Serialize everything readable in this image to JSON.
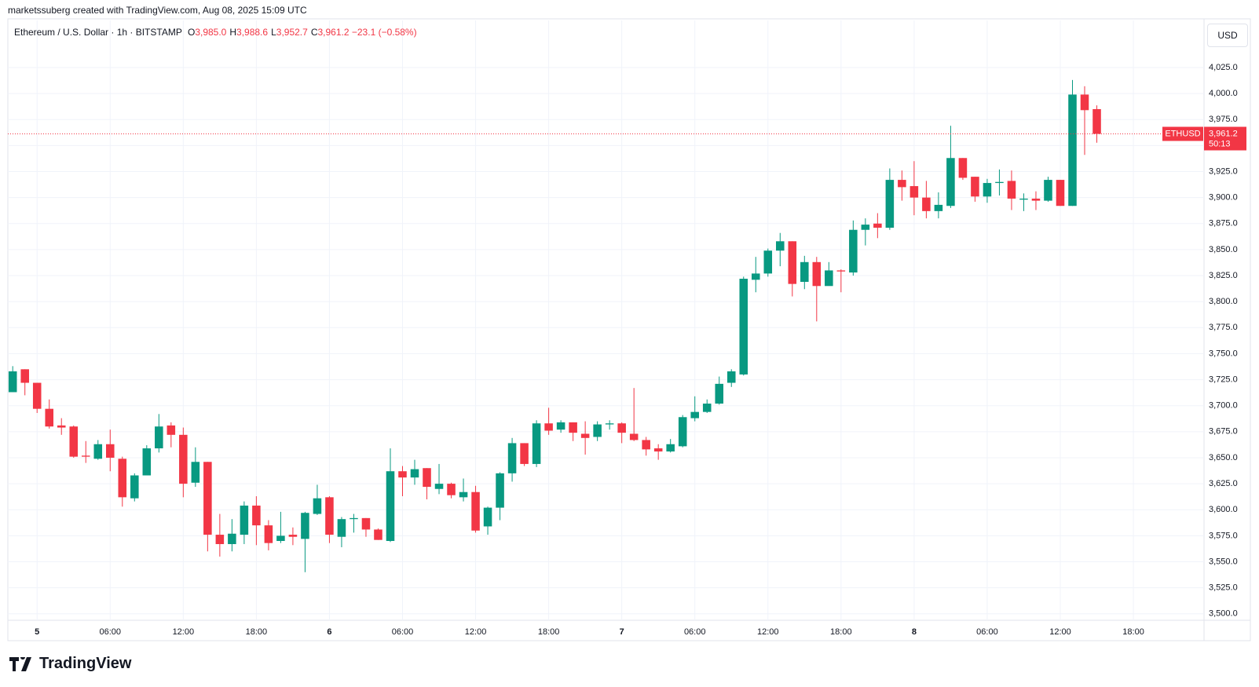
{
  "header": {
    "attribution": "marketssuberg created with TradingView.com, Aug 08, 2025 15:09 UTC",
    "symbol": "Ethereum / U.S. Dollar · 1h · BITSTAMP",
    "legend": [
      {
        "key": "O",
        "value": "3,985.0"
      },
      {
        "key": "H",
        "value": "3,988.6"
      },
      {
        "key": "L",
        "value": "3,952.7"
      },
      {
        "key": "C",
        "value": "3,961.2"
      }
    ],
    "change": "−23.1 (−0.58%)"
  },
  "currency": "USD",
  "price_tag": {
    "symbol": "ETHUSD",
    "countdown": "50:13"
  },
  "logo": "TradingView",
  "chart_data": {
    "type": "candlestick",
    "x": [
      -2,
      -1,
      0,
      1,
      2,
      3,
      4,
      5,
      6,
      7,
      8,
      9,
      10,
      11,
      12,
      13,
      14,
      15,
      16,
      17,
      18,
      19,
      20,
      21,
      22,
      23,
      24,
      25,
      26,
      27,
      28,
      29,
      30,
      31,
      32,
      33,
      34,
      35,
      36,
      37,
      38,
      39,
      40,
      41,
      42,
      43,
      44,
      45,
      46,
      47,
      48,
      49,
      50,
      51,
      52,
      53,
      54,
      55,
      56,
      57,
      58,
      59,
      60,
      61,
      62,
      63,
      64,
      65,
      66,
      67,
      68,
      69,
      70,
      71,
      72,
      73,
      74,
      75,
      76,
      77,
      78,
      79,
      80,
      81,
      82,
      83,
      84,
      85,
      86,
      87
    ],
    "open": [
      3713,
      3735,
      3722,
      3697,
      3681,
      3680,
      3652,
      3649,
      3663,
      3649,
      3611,
      3633,
      3659,
      3681,
      3672,
      3626,
      3646,
      3576,
      3567,
      3576,
      3604,
      3585,
      3570,
      3576,
      3572,
      3596,
      3612,
      3574,
      3591,
      3592,
      3581,
      3570,
      3637,
      3631,
      3640,
      3620,
      3625,
      3612,
      3617,
      3584,
      3602,
      3635,
      3664,
      3644,
      3683,
      3677,
      3684,
      3673,
      3670,
      3682,
      3683,
      3673,
      3667,
      3659,
      3656,
      3661,
      3688,
      3694,
      3702,
      3722,
      3730,
      3821,
      3827,
      3849,
      3858,
      3819,
      3838,
      3815,
      3830,
      3828,
      3869,
      3875,
      3871,
      3917,
      3911,
      3900,
      3887,
      3892,
      3938,
      3920,
      3901,
      3914,
      3916,
      3898,
      3899,
      3897,
      3917,
      3892,
      3999,
      3985
    ],
    "high": [
      3738,
      3735,
      3722,
      3706,
      3688,
      3681,
      3666,
      3667,
      3677,
      3651,
      3635,
      3662,
      3692,
      3684,
      3679,
      3660,
      3646,
      3596,
      3591,
      3608,
      3613,
      3590,
      3598,
      3583,
      3598,
      3624,
      3613,
      3593,
      3596,
      3592,
      3582,
      3659,
      3642,
      3648,
      3640,
      3644,
      3626,
      3630,
      3623,
      3603,
      3636,
      3669,
      3664,
      3686,
      3698,
      3686,
      3684,
      3685,
      3685,
      3686,
      3684,
      3717,
      3670,
      3663,
      3668,
      3691,
      3709,
      3706,
      3728,
      3735,
      3824,
      3843,
      3851,
      3866,
      3858,
      3844,
      3843,
      3838,
      3831,
      3878,
      3880,
      3885,
      3928,
      3926,
      3935,
      3916,
      3905,
      3969,
      3938,
      3920,
      3918,
      3927,
      3926,
      3904,
      3906,
      3920,
      3917,
      4013,
      4007,
      3988.6
    ],
    "low": [
      3713,
      3710,
      3693,
      3678,
      3672,
      3650,
      3645,
      3648,
      3637,
      3603,
      3608,
      3633,
      3655,
      3660,
      3612,
      3622,
      3560,
      3555,
      3560,
      3567,
      3566,
      3561,
      3568,
      3566,
      3540,
      3595,
      3568,
      3564,
      3578,
      3574,
      3571,
      3569,
      3613,
      3624,
      3610,
      3615,
      3611,
      3608,
      3578,
      3576,
      3590,
      3627,
      3642,
      3641,
      3672,
      3674,
      3666,
      3653,
      3666,
      3677,
      3664,
      3666,
      3652,
      3648,
      3655,
      3660,
      3685,
      3693,
      3701,
      3718,
      3729,
      3809,
      3824,
      3834,
      3805,
      3812,
      3781,
      3816,
      3809,
      3825,
      3854,
      3861,
      3869,
      3897,
      3883,
      3880,
      3880,
      3890,
      3917,
      3896,
      3895,
      3902,
      3888,
      3887,
      3888,
      3896,
      3892,
      3892,
      3941,
      3952.7
    ],
    "close": [
      3733,
      3722,
      3697,
      3680,
      3679,
      3651,
      3651,
      3663,
      3650,
      3612,
      3633,
      3659,
      3680,
      3672,
      3625,
      3646,
      3576,
      3567,
      3577,
      3604,
      3585,
      3568,
      3575,
      3574,
      3597,
      3611,
      3576,
      3591,
      3592,
      3581,
      3571,
      3637,
      3631,
      3639,
      3622,
      3625,
      3614,
      3617,
      3580,
      3602,
      3635,
      3664,
      3644,
      3683,
      3676,
      3684,
      3674,
      3669,
      3682,
      3683,
      3674,
      3667,
      3658,
      3656,
      3663,
      3689,
      3694,
      3702,
      3721,
      3733,
      3822,
      3827,
      3849,
      3858,
      3817,
      3838,
      3815,
      3830,
      3829,
      3869,
      3874,
      3871,
      3917,
      3910,
      3900,
      3887,
      3893,
      3938,
      3919,
      3901,
      3914,
      3915,
      3899,
      3899,
      3897,
      3917,
      3892,
      3999,
      3984,
      3961.2
    ],
    "up_color": "#089981",
    "down_color": "#f23645",
    "xlim": [
      -2.4,
      95.8
    ],
    "xticks": [
      {
        "value": 0,
        "label": "5"
      },
      {
        "value": 6,
        "label": "06:00"
      },
      {
        "value": 12,
        "label": "12:00"
      },
      {
        "value": 18,
        "label": "18:00"
      },
      {
        "value": 24,
        "label": "6"
      },
      {
        "value": 30,
        "label": "06:00"
      },
      {
        "value": 36,
        "label": "12:00"
      },
      {
        "value": 42,
        "label": "18:00"
      },
      {
        "value": 48,
        "label": "7"
      },
      {
        "value": 54,
        "label": "06:00"
      },
      {
        "value": 60,
        "label": "12:00"
      },
      {
        "value": 66,
        "label": "18:00"
      },
      {
        "value": 72,
        "label": "8"
      },
      {
        "value": 78,
        "label": "06:00"
      },
      {
        "value": 84,
        "label": "12:00"
      },
      {
        "value": 90,
        "label": "18:00"
      }
    ],
    "ylim": [
      3493.8,
      4047.6
    ],
    "yticks": [
      {
        "value": 3500,
        "label": "3,500.0"
      },
      {
        "value": 3525,
        "label": "3,525.0"
      },
      {
        "value": 3550,
        "label": "3,550.0"
      },
      {
        "value": 3575,
        "label": "3,575.0"
      },
      {
        "value": 3600,
        "label": "3,600.0"
      },
      {
        "value": 3625,
        "label": "3,625.0"
      },
      {
        "value": 3650,
        "label": "3,650.0"
      },
      {
        "value": 3675,
        "label": "3,675.0"
      },
      {
        "value": 3700,
        "label": "3,700.0"
      },
      {
        "value": 3725,
        "label": "3,725.0"
      },
      {
        "value": 3750,
        "label": "3,750.0"
      },
      {
        "value": 3775,
        "label": "3,775.0"
      },
      {
        "value": 3800,
        "label": "3,800.0"
      },
      {
        "value": 3825,
        "label": "3,825.0"
      },
      {
        "value": 3850,
        "label": "3,850.0"
      },
      {
        "value": 3875,
        "label": "3,875.0"
      },
      {
        "value": 3900,
        "label": "3,900.0"
      },
      {
        "value": 3925,
        "label": "3,925.0"
      },
      {
        "value": 3950,
        "label": "3,950.0"
      },
      {
        "value": 3975,
        "label": "3,975.0"
      },
      {
        "value": 4000,
        "label": "4,000.0"
      },
      {
        "value": 4025,
        "label": "4,025.0"
      }
    ],
    "grid": true,
    "last_price": {
      "value": 3961.2,
      "label": "3,961.2"
    }
  }
}
